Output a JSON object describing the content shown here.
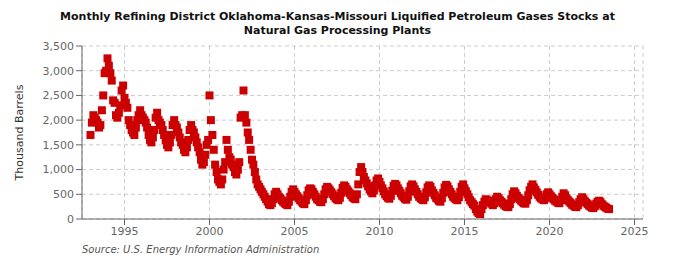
{
  "chart_data": {
    "type": "scatter",
    "title": "Monthly Refining District Oklahoma-Kansas-Missouri Liquified Petroleum Gases Stocks at\nNatural Gas Processing Plants",
    "ylabel": "Thousand Barrels",
    "annotations": [
      "Source: U.S. Energy Information Administration"
    ],
    "color": "#cc0000",
    "marker": "square",
    "grid": true,
    "xlim": [
      1992.5,
      2025.5
    ],
    "xticks": [
      1995,
      2000,
      2005,
      2010,
      2015,
      2020,
      2025
    ],
    "ylim": [
      0,
      3500
    ],
    "yticks": [
      0,
      500,
      {
        "value": 1000,
        "label": "1,000"
      },
      {
        "value": 1500,
        "label": "1,500"
      },
      {
        "value": 2000,
        "label": "2,000"
      },
      {
        "value": 2500,
        "label": "2,500"
      },
      {
        "value": 3000,
        "label": "3,000"
      },
      {
        "value": 3500,
        "label": "3,500"
      }
    ],
    "x": [
      1993.0,
      1993.08,
      1993.17,
      1993.25,
      1993.33,
      1993.42,
      1993.5,
      1993.58,
      1993.67,
      1993.75,
      1993.83,
      1993.92,
      1994.0,
      1994.08,
      1994.17,
      1994.25,
      1994.33,
      1994.42,
      1994.5,
      1994.58,
      1994.67,
      1994.75,
      1994.83,
      1994.92,
      1995.0,
      1995.08,
      1995.17,
      1995.25,
      1995.33,
      1995.42,
      1995.5,
      1995.58,
      1995.67,
      1995.75,
      1995.83,
      1995.92,
      1996.0,
      1996.08,
      1996.17,
      1996.25,
      1996.33,
      1996.42,
      1996.5,
      1996.58,
      1996.67,
      1996.75,
      1996.83,
      1996.92,
      1997.0,
      1997.08,
      1997.17,
      1997.25,
      1997.33,
      1997.42,
      1997.5,
      1997.58,
      1997.67,
      1997.75,
      1997.83,
      1997.92,
      1998.0,
      1998.08,
      1998.17,
      1998.25,
      1998.33,
      1998.42,
      1998.5,
      1998.58,
      1998.67,
      1998.75,
      1998.83,
      1998.92,
      1999.0,
      1999.08,
      1999.17,
      1999.25,
      1999.33,
      1999.42,
      1999.5,
      1999.58,
      1999.67,
      1999.75,
      1999.83,
      1999.92,
      2000.0,
      2000.08,
      2000.17,
      2000.25,
      2000.33,
      2000.42,
      2000.5,
      2000.58,
      2000.67,
      2000.75,
      2000.83,
      2000.92,
      2001.0,
      2001.08,
      2001.17,
      2001.25,
      2001.33,
      2001.42,
      2001.5,
      2001.58,
      2001.67,
      2001.75,
      2001.83,
      2001.92,
      2002.0,
      2002.08,
      2002.17,
      2002.25,
      2002.33,
      2002.42,
      2002.5,
      2002.58,
      2002.67,
      2002.75,
      2002.83,
      2002.92,
      2003.0,
      2003.08,
      2003.17,
      2003.25,
      2003.33,
      2003.42,
      2003.5,
      2003.58,
      2003.67,
      2003.75,
      2003.83,
      2003.92,
      2004.0,
      2004.08,
      2004.17,
      2004.25,
      2004.33,
      2004.42,
      2004.5,
      2004.58,
      2004.67,
      2004.75,
      2004.83,
      2004.92,
      2005.0,
      2005.08,
      2005.17,
      2005.25,
      2005.33,
      2005.42,
      2005.5,
      2005.58,
      2005.67,
      2005.75,
      2005.83,
      2005.92,
      2006.0,
      2006.08,
      2006.17,
      2006.25,
      2006.33,
      2006.42,
      2006.5,
      2006.58,
      2006.67,
      2006.75,
      2006.83,
      2006.92,
      2007.0,
      2007.08,
      2007.17,
      2007.25,
      2007.33,
      2007.42,
      2007.5,
      2007.58,
      2007.67,
      2007.75,
      2007.83,
      2007.92,
      2008.0,
      2008.08,
      2008.17,
      2008.25,
      2008.33,
      2008.42,
      2008.5,
      2008.58,
      2008.67,
      2008.75,
      2008.83,
      2008.92,
      2009.0,
      2009.08,
      2009.17,
      2009.25,
      2009.33,
      2009.42,
      2009.5,
      2009.58,
      2009.67,
      2009.75,
      2009.83,
      2009.92,
      2010.0,
      2010.08,
      2010.17,
      2010.25,
      2010.33,
      2010.42,
      2010.5,
      2010.58,
      2010.67,
      2010.75,
      2010.83,
      2010.92,
      2011.0,
      2011.08,
      2011.17,
      2011.25,
      2011.33,
      2011.42,
      2011.5,
      2011.58,
      2011.67,
      2011.75,
      2011.83,
      2011.92,
      2012.0,
      2012.08,
      2012.17,
      2012.25,
      2012.33,
      2012.42,
      2012.5,
      2012.58,
      2012.67,
      2012.75,
      2012.83,
      2012.92,
      2013.0,
      2013.08,
      2013.17,
      2013.25,
      2013.33,
      2013.42,
      2013.5,
      2013.58,
      2013.67,
      2013.75,
      2013.83,
      2013.92,
      2014.0,
      2014.08,
      2014.17,
      2014.25,
      2014.33,
      2014.42,
      2014.5,
      2014.58,
      2014.67,
      2014.75,
      2014.83,
      2014.92,
      2015.0,
      2015.08,
      2015.17,
      2015.25,
      2015.33,
      2015.42,
      2015.5,
      2015.58,
      2015.67,
      2015.75,
      2015.83,
      2015.92,
      2016.0,
      2016.08,
      2016.17,
      2016.25,
      2016.33,
      2016.42,
      2016.5,
      2016.58,
      2016.67,
      2016.75,
      2016.83,
      2016.92,
      2017.0,
      2017.08,
      2017.17,
      2017.25,
      2017.33,
      2017.42,
      2017.5,
      2017.58,
      2017.67,
      2017.75,
      2017.83,
      2017.92,
      2018.0,
      2018.08,
      2018.17,
      2018.25,
      2018.33,
      2018.42,
      2018.5,
      2018.58,
      2018.67,
      2018.75,
      2018.83,
      2018.92,
      2019.0,
      2019.08,
      2019.17,
      2019.25,
      2019.33,
      2019.42,
      2019.5,
      2019.58,
      2019.67,
      2019.75,
      2019.83,
      2019.92,
      2020.0,
      2020.08,
      2020.17,
      2020.25,
      2020.33,
      2020.42,
      2020.5,
      2020.58,
      2020.67,
      2020.75,
      2020.83,
      2020.92,
      2021.0,
      2021.08,
      2021.17,
      2021.25,
      2021.33,
      2021.42,
      2021.5,
      2021.58,
      2021.67,
      2021.75,
      2021.83,
      2021.92,
      2022.0,
      2022.08,
      2022.17,
      2022.25,
      2022.33,
      2022.42,
      2022.5,
      2022.58,
      2022.67,
      2022.75,
      2022.83,
      2022.92,
      2023.0,
      2023.08,
      2023.17,
      2023.25,
      2023.33,
      2023.42,
      2023.5
    ],
    "values": [
      1700,
      1950,
      2100,
      2050,
      2000,
      1950,
      1850,
      1900,
      2200,
      2500,
      2950,
      3000,
      3250,
      3100,
      2950,
      2800,
      2400,
      2350,
      2100,
      2050,
      2150,
      2300,
      2600,
      2700,
      2450,
      2350,
      2250,
      2000,
      1900,
      1800,
      1750,
      1700,
      1850,
      2000,
      2100,
      2200,
      2100,
      2050,
      2000,
      1950,
      1850,
      1700,
      1600,
      1550,
      1650,
      1800,
      2050,
      2150,
      2000,
      1950,
      1900,
      1800,
      1700,
      1600,
      1500,
      1450,
      1550,
      1700,
      1900,
      2000,
      1900,
      1850,
      1750,
      1650,
      1550,
      1500,
      1400,
      1350,
      1450,
      1600,
      1800,
      1900,
      1800,
      1750,
      1650,
      1550,
      1450,
      1350,
      1200,
      1100,
      1150,
      1300,
      1500,
      1600,
      2500,
      2000,
      1700,
      1400,
      1100,
      950,
      800,
      750,
      700,
      800,
      1000,
      1150,
      1600,
      1400,
      1250,
      1200,
      1100,
      1050,
      950,
      900,
      1000,
      1150,
      2050,
      2100,
      2600,
      2100,
      1950,
      1750,
      1600,
      1400,
      1200,
      1100,
      950,
      800,
      700,
      650,
      600,
      550,
      500,
      450,
      400,
      350,
      300,
      280,
      320,
      400,
      500,
      550,
      500,
      450,
      420,
      380,
      350,
      320,
      300,
      280,
      350,
      450,
      550,
      600,
      550,
      500,
      460,
      420,
      380,
      350,
      320,
      300,
      380,
      480,
      580,
      620,
      600,
      550,
      500,
      450,
      400,
      380,
      350,
      340,
      400,
      500,
      600,
      650,
      620,
      580,
      540,
      500,
      460,
      420,
      400,
      380,
      430,
      530,
      630,
      680,
      650,
      600,
      560,
      520,
      480,
      440,
      420,
      400,
      500,
      700,
      950,
      1050,
      950,
      850,
      780,
      720,
      660,
      600,
      560,
      520,
      580,
      680,
      780,
      820,
      750,
      680,
      620,
      560,
      500,
      460,
      430,
      410,
      470,
      570,
      670,
      710,
      680,
      620,
      570,
      520,
      470,
      440,
      410,
      390,
      450,
      560,
      660,
      700,
      660,
      600,
      550,
      500,
      450,
      420,
      400,
      380,
      440,
      540,
      640,
      680,
      650,
      580,
      530,
      480,
      430,
      400,
      370,
      350,
      420,
      530,
      640,
      690,
      660,
      600,
      550,
      500,
      450,
      420,
      400,
      380,
      440,
      550,
      650,
      700,
      620,
      560,
      500,
      440,
      380,
      340,
      300,
      270,
      200,
      150,
      120,
      100,
      200,
      280,
      350,
      400,
      380,
      360,
      340,
      310,
      280,
      320,
      400,
      450,
      420,
      380,
      350,
      320,
      290,
      260,
      250,
      240,
      300,
      400,
      500,
      560,
      520,
      470,
      430,
      400,
      370,
      340,
      320,
      310,
      380,
      480,
      580,
      650,
      700,
      640,
      590,
      540,
      490,
      450,
      420,
      400,
      380,
      420,
      500,
      540,
      500,
      460,
      430,
      400,
      370,
      350,
      330,
      320,
      380,
      450,
      520,
      480,
      420,
      380,
      350,
      320,
      290,
      270,
      250,
      240,
      280,
      340,
      400,
      440,
      400,
      360,
      330,
      300,
      270,
      250,
      230,
      220,
      260,
      310,
      350,
      370,
      340,
      300,
      270,
      250,
      230,
      210,
      200
    ]
  }
}
